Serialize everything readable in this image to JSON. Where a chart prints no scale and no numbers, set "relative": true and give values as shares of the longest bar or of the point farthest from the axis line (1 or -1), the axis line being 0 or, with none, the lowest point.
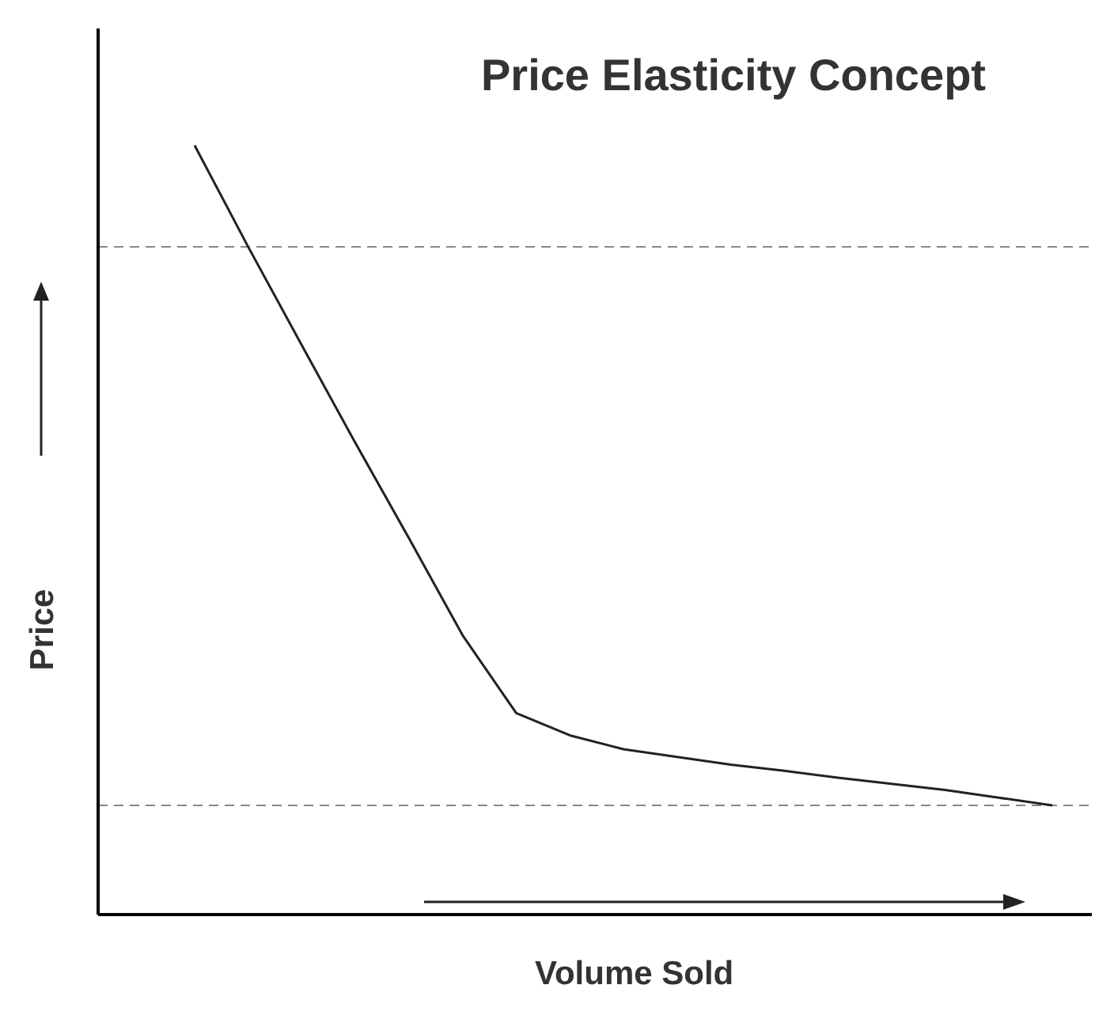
{
  "chart_data": {
    "type": "line",
    "title": "Price Elasticity Concept",
    "xlabel": "Volume Sold",
    "ylabel": "Price",
    "relative": true,
    "marker": "none",
    "line_style": "solid",
    "color": "#222222",
    "categories": [
      null,
      null,
      null,
      null,
      null,
      null,
      null,
      null,
      null,
      null,
      null,
      null,
      null,
      null,
      null,
      null,
      null
    ],
    "values": [
      1.0,
      0.868,
      0.74,
      0.613,
      0.489,
      0.363,
      0.262,
      0.233,
      0.215,
      0.205,
      0.195,
      0.187,
      0.178,
      0.17,
      0.162,
      0.152,
      0.142
    ],
    "ref_lines": [
      {
        "axis": "y",
        "value": 0.868,
        "color": "#888888",
        "line_style": "dashed"
      },
      {
        "axis": "y",
        "value": 0.142,
        "color": "#888888",
        "line_style": "dashed"
      }
    ]
  }
}
